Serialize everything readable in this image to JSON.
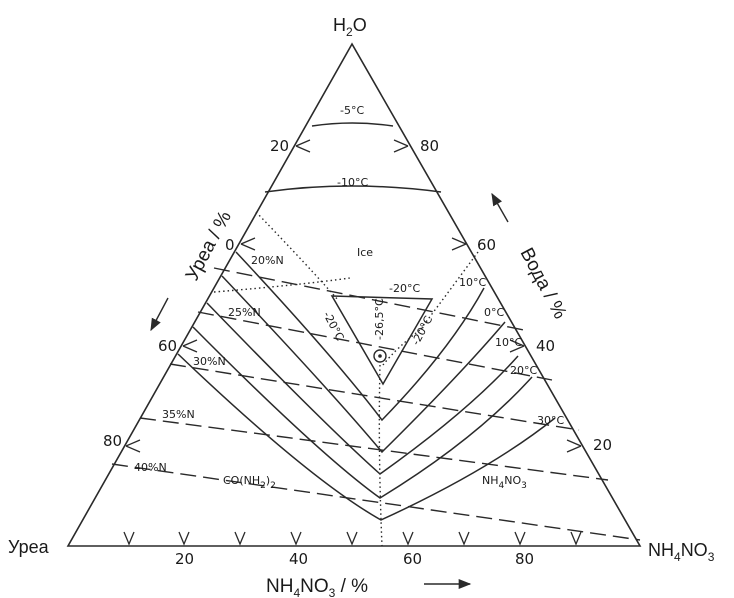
{
  "vertices": {
    "top": {
      "main": "H",
      "sub": "2",
      "tail": "O"
    },
    "left": {
      "main": "Уреа"
    },
    "right": {
      "main": "NH",
      "sub": "4",
      "mid": "NO",
      "sub2": "3"
    }
  },
  "axes": {
    "urea": {
      "title": "Уреа / %"
    },
    "water": {
      "title": "Вода / %"
    },
    "ammonium": {
      "title_main": "NH",
      "title_sub": "4",
      "title_mid": "NO",
      "title_sub2": "3",
      "title_tail": " / %"
    }
  },
  "ticks": {
    "left": [
      "20",
      "0",
      "60",
      "80"
    ],
    "right": [
      "80",
      "60",
      "40",
      "20"
    ],
    "bottom": [
      "20",
      "40",
      "60",
      "80"
    ]
  },
  "isotherms": [
    "-5°C",
    "-10°C",
    "-20°C",
    "-20°C",
    "-20°C",
    "-26,5°C",
    "10°C",
    "0°C",
    "10°C",
    "20°C",
    "30°C"
  ],
  "nitrogen_lines": [
    "20%N",
    "25%N",
    "30%N",
    "35%N",
    "40%N"
  ],
  "regions": {
    "ice": "Ice",
    "urea": {
      "main": "CO(NH",
      "sub": "2",
      "tail": ")",
      "sub2": "2"
    },
    "ammonium": {
      "main": "NH",
      "sub": "4",
      "mid": "NO",
      "sub2": "3"
    }
  },
  "colors": {
    "ink": "#2a2a2a",
    "background": "#ffffff"
  }
}
